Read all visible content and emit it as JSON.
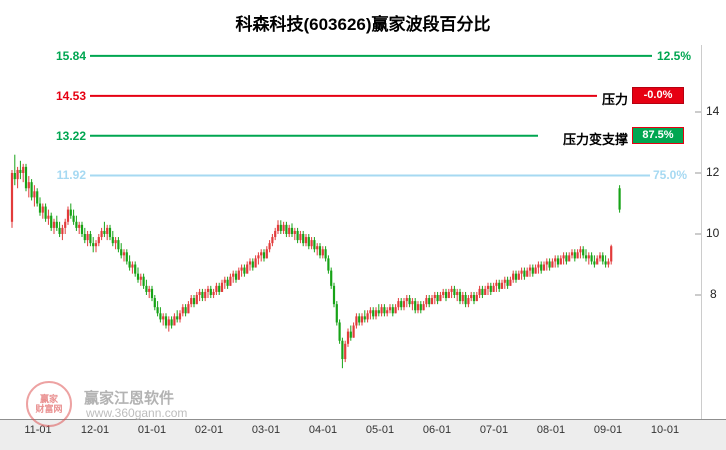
{
  "header": {
    "title": "科森科技(603626)赢家波段百分比"
  },
  "watermark": {
    "seal_top": "赢家",
    "seal_bottom": "财富网",
    "brand": "赢家江恩软件",
    "site": "www.360gann.com"
  },
  "colors": {
    "up": "#e23b3b",
    "down": "#17a317",
    "green_line": "#00a651",
    "red_line": "#e60012",
    "blue_line": "#a6d9f2"
  },
  "chart_data": {
    "type": "candlestick",
    "title": "科森科技(603626)赢家波段百分比",
    "format": "[open, high, low, close]",
    "ylim": [
      3.9,
      16.3
    ],
    "y_ticks": [
      14,
      12,
      10,
      8
    ],
    "x_tick_labels": [
      "11-01",
      "12-01",
      "01-01",
      "02-01",
      "03-01",
      "04-01",
      "05-01",
      "06-01",
      "07-01",
      "08-01",
      "09-01",
      "10-01"
    ],
    "legend": "none",
    "grid": false,
    "up_color": "#e23b3b",
    "down_color": "#17a317",
    "hlines": [
      {
        "value": 15.84,
        "color": "#00a651",
        "label_left": "15.84",
        "label_right": "12.5%"
      },
      {
        "value": 14.53,
        "color": "#e60012",
        "label_left": "14.53",
        "label_right": "压力",
        "badge": "-0.0%"
      },
      {
        "value": 13.22,
        "color": "#00a651",
        "label_left": "13.22",
        "label_right": "压力变支撑",
        "badge": "87.5%"
      },
      {
        "value": 11.92,
        "color": "#a6d9f2",
        "label_left": "11.92",
        "label_right": "75.0%"
      }
    ],
    "ohlc": [
      [
        10.4,
        12.1,
        10.2,
        12.0
      ],
      [
        12.0,
        12.6,
        11.6,
        11.8
      ],
      [
        11.8,
        12.2,
        11.5,
        12.1
      ],
      [
        12.1,
        12.4,
        11.8,
        12.0
      ],
      [
        12.0,
        12.3,
        11.7,
        12.2
      ],
      [
        12.2,
        12.3,
        11.4,
        11.5
      ],
      [
        11.5,
        11.9,
        11.2,
        11.7
      ],
      [
        11.7,
        11.8,
        11.1,
        11.2
      ],
      [
        11.2,
        11.6,
        10.9,
        11.4
      ],
      [
        11.4,
        11.5,
        10.9,
        11.0
      ],
      [
        11.0,
        11.2,
        10.6,
        10.7
      ],
      [
        10.7,
        11.0,
        10.5,
        10.9
      ],
      [
        10.9,
        11.0,
        10.4,
        10.5
      ],
      [
        10.5,
        10.8,
        10.3,
        10.6
      ],
      [
        10.6,
        10.7,
        10.1,
        10.2
      ],
      [
        10.2,
        10.5,
        10.0,
        10.4
      ],
      [
        10.4,
        10.6,
        10.1,
        10.2
      ],
      [
        10.2,
        10.4,
        9.9,
        10.0
      ],
      [
        10.0,
        10.3,
        9.8,
        10.2
      ],
      [
        10.2,
        10.5,
        10.0,
        10.4
      ],
      [
        10.4,
        10.9,
        10.3,
        10.8
      ],
      [
        10.8,
        11.0,
        10.5,
        10.6
      ],
      [
        10.6,
        10.8,
        10.3,
        10.4
      ],
      [
        10.4,
        10.6,
        10.1,
        10.2
      ],
      [
        10.2,
        10.4,
        10.0,
        10.3
      ],
      [
        10.3,
        10.4,
        9.9,
        10.0
      ],
      [
        10.0,
        10.2,
        9.7,
        9.8
      ],
      [
        9.8,
        10.1,
        9.6,
        10.0
      ],
      [
        10.0,
        10.1,
        9.6,
        9.7
      ],
      [
        9.7,
        9.9,
        9.4,
        9.6
      ],
      [
        9.6,
        9.8,
        9.4,
        9.7
      ],
      [
        9.7,
        10.0,
        9.6,
        9.9
      ],
      [
        9.9,
        10.2,
        9.8,
        10.1
      ],
      [
        10.1,
        10.4,
        9.9,
        10.0
      ],
      [
        10.0,
        10.3,
        9.8,
        10.2
      ],
      [
        10.2,
        10.3,
        9.8,
        9.9
      ],
      [
        9.9,
        10.1,
        9.6,
        9.7
      ],
      [
        9.7,
        9.9,
        9.5,
        9.8
      ],
      [
        9.8,
        9.9,
        9.4,
        9.5
      ],
      [
        9.5,
        9.7,
        9.2,
        9.3
      ],
      [
        9.3,
        9.5,
        9.1,
        9.4
      ],
      [
        9.4,
        9.5,
        9.0,
        9.1
      ],
      [
        9.1,
        9.3,
        8.8,
        8.9
      ],
      [
        8.9,
        9.1,
        8.7,
        9.0
      ],
      [
        9.0,
        9.1,
        8.6,
        8.7
      ],
      [
        8.7,
        8.9,
        8.4,
        8.5
      ],
      [
        8.5,
        8.7,
        8.3,
        8.6
      ],
      [
        8.6,
        8.7,
        8.2,
        8.3
      ],
      [
        8.3,
        8.5,
        8.0,
        8.1
      ],
      [
        8.1,
        8.3,
        7.9,
        8.2
      ],
      [
        8.2,
        8.3,
        7.8,
        7.9
      ],
      [
        7.9,
        8.0,
        7.5,
        7.6
      ],
      [
        7.6,
        7.8,
        7.3,
        7.4
      ],
      [
        7.4,
        7.6,
        7.1,
        7.2
      ],
      [
        7.2,
        7.4,
        7.0,
        7.3
      ],
      [
        7.3,
        7.4,
        6.9,
        7.0
      ],
      [
        7.0,
        7.3,
        6.8,
        7.2
      ],
      [
        7.2,
        7.3,
        6.9,
        7.0
      ],
      [
        7.0,
        7.4,
        7.0,
        7.3
      ],
      [
        7.3,
        7.5,
        7.1,
        7.2
      ],
      [
        7.2,
        7.5,
        7.1,
        7.4
      ],
      [
        7.4,
        7.7,
        7.3,
        7.6
      ],
      [
        7.6,
        7.7,
        7.3,
        7.4
      ],
      [
        7.4,
        7.8,
        7.4,
        7.7
      ],
      [
        7.7,
        8.0,
        7.6,
        7.9
      ],
      [
        7.9,
        8.0,
        7.6,
        7.7
      ],
      [
        7.7,
        8.1,
        7.7,
        8.0
      ],
      [
        8.0,
        8.2,
        7.8,
        8.1
      ],
      [
        8.1,
        8.2,
        7.8,
        7.9
      ],
      [
        7.9,
        8.2,
        7.8,
        8.1
      ],
      [
        8.1,
        8.3,
        7.9,
        8.2
      ],
      [
        8.2,
        8.3,
        7.9,
        8.0
      ],
      [
        8.0,
        8.2,
        7.9,
        8.1
      ],
      [
        8.1,
        8.4,
        8.0,
        8.3
      ],
      [
        8.3,
        8.4,
        8.0,
        8.1
      ],
      [
        8.1,
        8.5,
        8.1,
        8.4
      ],
      [
        8.4,
        8.6,
        8.2,
        8.5
      ],
      [
        8.5,
        8.6,
        8.2,
        8.3
      ],
      [
        8.3,
        8.7,
        8.3,
        8.6
      ],
      [
        8.6,
        8.8,
        8.4,
        8.7
      ],
      [
        8.7,
        8.8,
        8.4,
        8.5
      ],
      [
        8.5,
        8.9,
        8.5,
        8.8
      ],
      [
        8.8,
        9.0,
        8.6,
        8.9
      ],
      [
        8.9,
        9.0,
        8.6,
        8.7
      ],
      [
        8.7,
        9.1,
        8.7,
        9.0
      ],
      [
        9.0,
        9.2,
        8.8,
        9.1
      ],
      [
        9.1,
        9.2,
        8.8,
        8.9
      ],
      [
        8.9,
        9.3,
        8.9,
        9.2
      ],
      [
        9.2,
        9.4,
        9.0,
        9.3
      ],
      [
        9.3,
        9.5,
        9.1,
        9.4
      ],
      [
        9.4,
        9.5,
        9.1,
        9.2
      ],
      [
        9.2,
        9.6,
        9.2,
        9.5
      ],
      [
        9.5,
        9.8,
        9.4,
        9.7
      ],
      [
        9.7,
        10.0,
        9.6,
        9.9
      ],
      [
        9.9,
        10.2,
        9.8,
        10.1
      ],
      [
        10.1,
        10.45,
        10.0,
        10.3
      ],
      [
        10.3,
        10.45,
        10.0,
        10.1
      ],
      [
        10.1,
        10.4,
        10.0,
        10.3
      ],
      [
        10.3,
        10.4,
        9.9,
        10.0
      ],
      [
        10.0,
        10.3,
        9.9,
        10.2
      ],
      [
        10.2,
        10.35,
        9.9,
        10.0
      ],
      [
        10.0,
        10.2,
        9.8,
        10.1
      ],
      [
        10.1,
        10.2,
        9.7,
        9.8
      ],
      [
        9.8,
        10.1,
        9.7,
        10.0
      ],
      [
        10.0,
        10.1,
        9.6,
        9.7
      ],
      [
        9.7,
        10.0,
        9.6,
        9.9
      ],
      [
        9.9,
        10.0,
        9.5,
        9.6
      ],
      [
        9.6,
        9.9,
        9.5,
        9.8
      ],
      [
        9.8,
        9.9,
        9.4,
        9.5
      ],
      [
        9.5,
        9.7,
        9.3,
        9.6
      ],
      [
        9.6,
        9.7,
        9.2,
        9.3
      ],
      [
        9.3,
        9.6,
        9.2,
        9.5
      ],
      [
        9.5,
        9.6,
        9.1,
        9.2
      ],
      [
        9.2,
        9.3,
        8.7,
        8.8
      ],
      [
        8.8,
        8.9,
        8.2,
        8.3
      ],
      [
        8.3,
        8.4,
        7.6,
        7.7
      ],
      [
        7.7,
        7.8,
        7.0,
        7.1
      ],
      [
        7.1,
        7.2,
        6.4,
        6.5
      ],
      [
        6.5,
        6.6,
        5.6,
        5.9
      ],
      [
        5.9,
        6.5,
        5.8,
        6.4
      ],
      [
        6.4,
        6.9,
        6.3,
        6.8
      ],
      [
        6.8,
        7.0,
        6.5,
        6.6
      ],
      [
        6.6,
        7.1,
        6.6,
        7.0
      ],
      [
        7.0,
        7.4,
        6.9,
        7.3
      ],
      [
        7.3,
        7.4,
        7.0,
        7.1
      ],
      [
        7.1,
        7.4,
        7.0,
        7.3
      ],
      [
        7.3,
        7.5,
        7.1,
        7.2
      ],
      [
        7.2,
        7.5,
        7.1,
        7.4
      ],
      [
        7.4,
        7.6,
        7.2,
        7.5
      ],
      [
        7.5,
        7.6,
        7.2,
        7.3
      ],
      [
        7.3,
        7.6,
        7.2,
        7.5
      ],
      [
        7.5,
        7.7,
        7.3,
        7.4
      ],
      [
        7.4,
        7.7,
        7.3,
        7.6
      ],
      [
        7.6,
        7.7,
        7.3,
        7.4
      ],
      [
        7.4,
        7.6,
        7.3,
        7.5
      ],
      [
        7.5,
        7.7,
        7.4,
        7.6
      ],
      [
        7.6,
        7.7,
        7.3,
        7.4
      ],
      [
        7.4,
        7.7,
        7.4,
        7.6
      ],
      [
        7.6,
        7.9,
        7.5,
        7.8
      ],
      [
        7.8,
        7.9,
        7.5,
        7.6
      ],
      [
        7.6,
        7.9,
        7.5,
        7.8
      ],
      [
        7.8,
        8.0,
        7.6,
        7.9
      ],
      [
        7.9,
        8.0,
        7.6,
        7.7
      ],
      [
        7.7,
        7.9,
        7.5,
        7.8
      ],
      [
        7.8,
        7.9,
        7.4,
        7.5
      ],
      [
        7.5,
        7.8,
        7.4,
        7.7
      ],
      [
        7.7,
        7.8,
        7.4,
        7.5
      ],
      [
        7.5,
        7.8,
        7.5,
        7.7
      ],
      [
        7.7,
        8.0,
        7.6,
        7.9
      ],
      [
        7.9,
        8.0,
        7.6,
        7.7
      ],
      [
        7.7,
        8.0,
        7.7,
        7.9
      ],
      [
        7.9,
        8.1,
        7.7,
        8.0
      ],
      [
        8.0,
        8.1,
        7.7,
        7.8
      ],
      [
        7.8,
        8.1,
        7.8,
        8.0
      ],
      [
        8.0,
        8.2,
        7.9,
        8.1
      ],
      [
        8.1,
        8.2,
        7.8,
        7.9
      ],
      [
        7.9,
        8.2,
        7.9,
        8.1
      ],
      [
        8.1,
        8.3,
        7.9,
        8.2
      ],
      [
        8.2,
        8.3,
        7.9,
        8.0
      ],
      [
        8.0,
        8.2,
        7.8,
        8.1
      ],
      [
        8.1,
        8.2,
        7.7,
        7.8
      ],
      [
        7.8,
        8.1,
        7.7,
        8.0
      ],
      [
        8.0,
        8.1,
        7.6,
        7.7
      ],
      [
        7.7,
        8.0,
        7.6,
        7.9
      ],
      [
        7.9,
        8.1,
        7.8,
        8.0
      ],
      [
        8.0,
        8.1,
        7.7,
        7.8
      ],
      [
        7.8,
        8.1,
        7.8,
        8.0
      ],
      [
        8.0,
        8.3,
        7.9,
        8.2
      ],
      [
        8.2,
        8.3,
        7.9,
        8.0
      ],
      [
        8.0,
        8.3,
        8.0,
        8.2
      ],
      [
        8.2,
        8.4,
        8.0,
        8.3
      ],
      [
        8.3,
        8.4,
        8.0,
        8.1
      ],
      [
        8.1,
        8.4,
        8.1,
        8.3
      ],
      [
        8.3,
        8.5,
        8.1,
        8.4
      ],
      [
        8.4,
        8.5,
        8.1,
        8.2
      ],
      [
        8.2,
        8.5,
        8.2,
        8.4
      ],
      [
        8.4,
        8.6,
        8.2,
        8.5
      ],
      [
        8.5,
        8.6,
        8.2,
        8.3
      ],
      [
        8.3,
        8.6,
        8.3,
        8.5
      ],
      [
        8.5,
        8.8,
        8.4,
        8.7
      ],
      [
        8.7,
        8.8,
        8.4,
        8.5
      ],
      [
        8.5,
        8.8,
        8.5,
        8.7
      ],
      [
        8.7,
        8.9,
        8.5,
        8.8
      ],
      [
        8.8,
        8.9,
        8.5,
        8.6
      ],
      [
        8.6,
        8.9,
        8.6,
        8.8
      ],
      [
        8.8,
        9.0,
        8.6,
        8.9
      ],
      [
        8.9,
        9.0,
        8.6,
        8.7
      ],
      [
        8.7,
        9.0,
        8.7,
        8.9
      ],
      [
        8.9,
        9.1,
        8.7,
        9.0
      ],
      [
        9.0,
        9.1,
        8.7,
        8.8
      ],
      [
        8.8,
        9.1,
        8.8,
        9.0
      ],
      [
        9.0,
        9.2,
        8.8,
        9.1
      ],
      [
        9.1,
        9.2,
        8.8,
        8.9
      ],
      [
        8.9,
        9.2,
        8.9,
        9.1
      ],
      [
        9.1,
        9.3,
        8.9,
        9.2
      ],
      [
        9.2,
        9.3,
        8.9,
        9.0
      ],
      [
        9.0,
        9.3,
        9.0,
        9.2
      ],
      [
        9.2,
        9.4,
        9.0,
        9.3
      ],
      [
        9.3,
        9.4,
        9.0,
        9.1
      ],
      [
        9.1,
        9.4,
        9.1,
        9.3
      ],
      [
        9.3,
        9.5,
        9.2,
        9.4
      ],
      [
        9.4,
        9.5,
        9.1,
        9.2
      ],
      [
        9.2,
        9.5,
        9.2,
        9.4
      ],
      [
        9.4,
        9.6,
        9.2,
        9.5
      ],
      [
        9.5,
        9.6,
        9.2,
        9.3
      ],
      [
        9.3,
        9.5,
        9.1,
        9.2
      ],
      [
        9.2,
        9.4,
        9.0,
        9.3
      ],
      [
        9.3,
        9.4,
        9.0,
        9.1
      ],
      [
        9.1,
        9.3,
        8.9,
        9.0
      ],
      [
        9.0,
        9.3,
        9.0,
        9.2
      ],
      [
        9.2,
        9.4,
        9.1,
        9.3
      ],
      [
        9.3,
        9.4,
        9.0,
        9.1
      ],
      [
        9.1,
        9.3,
        8.9,
        9.0
      ],
      [
        9.0,
        9.2,
        8.9,
        9.1
      ],
      [
        9.1,
        9.65,
        9.0,
        9.6
      ],
      null,
      null,
      [
        11.5,
        11.6,
        10.7,
        10.8
      ]
    ]
  }
}
